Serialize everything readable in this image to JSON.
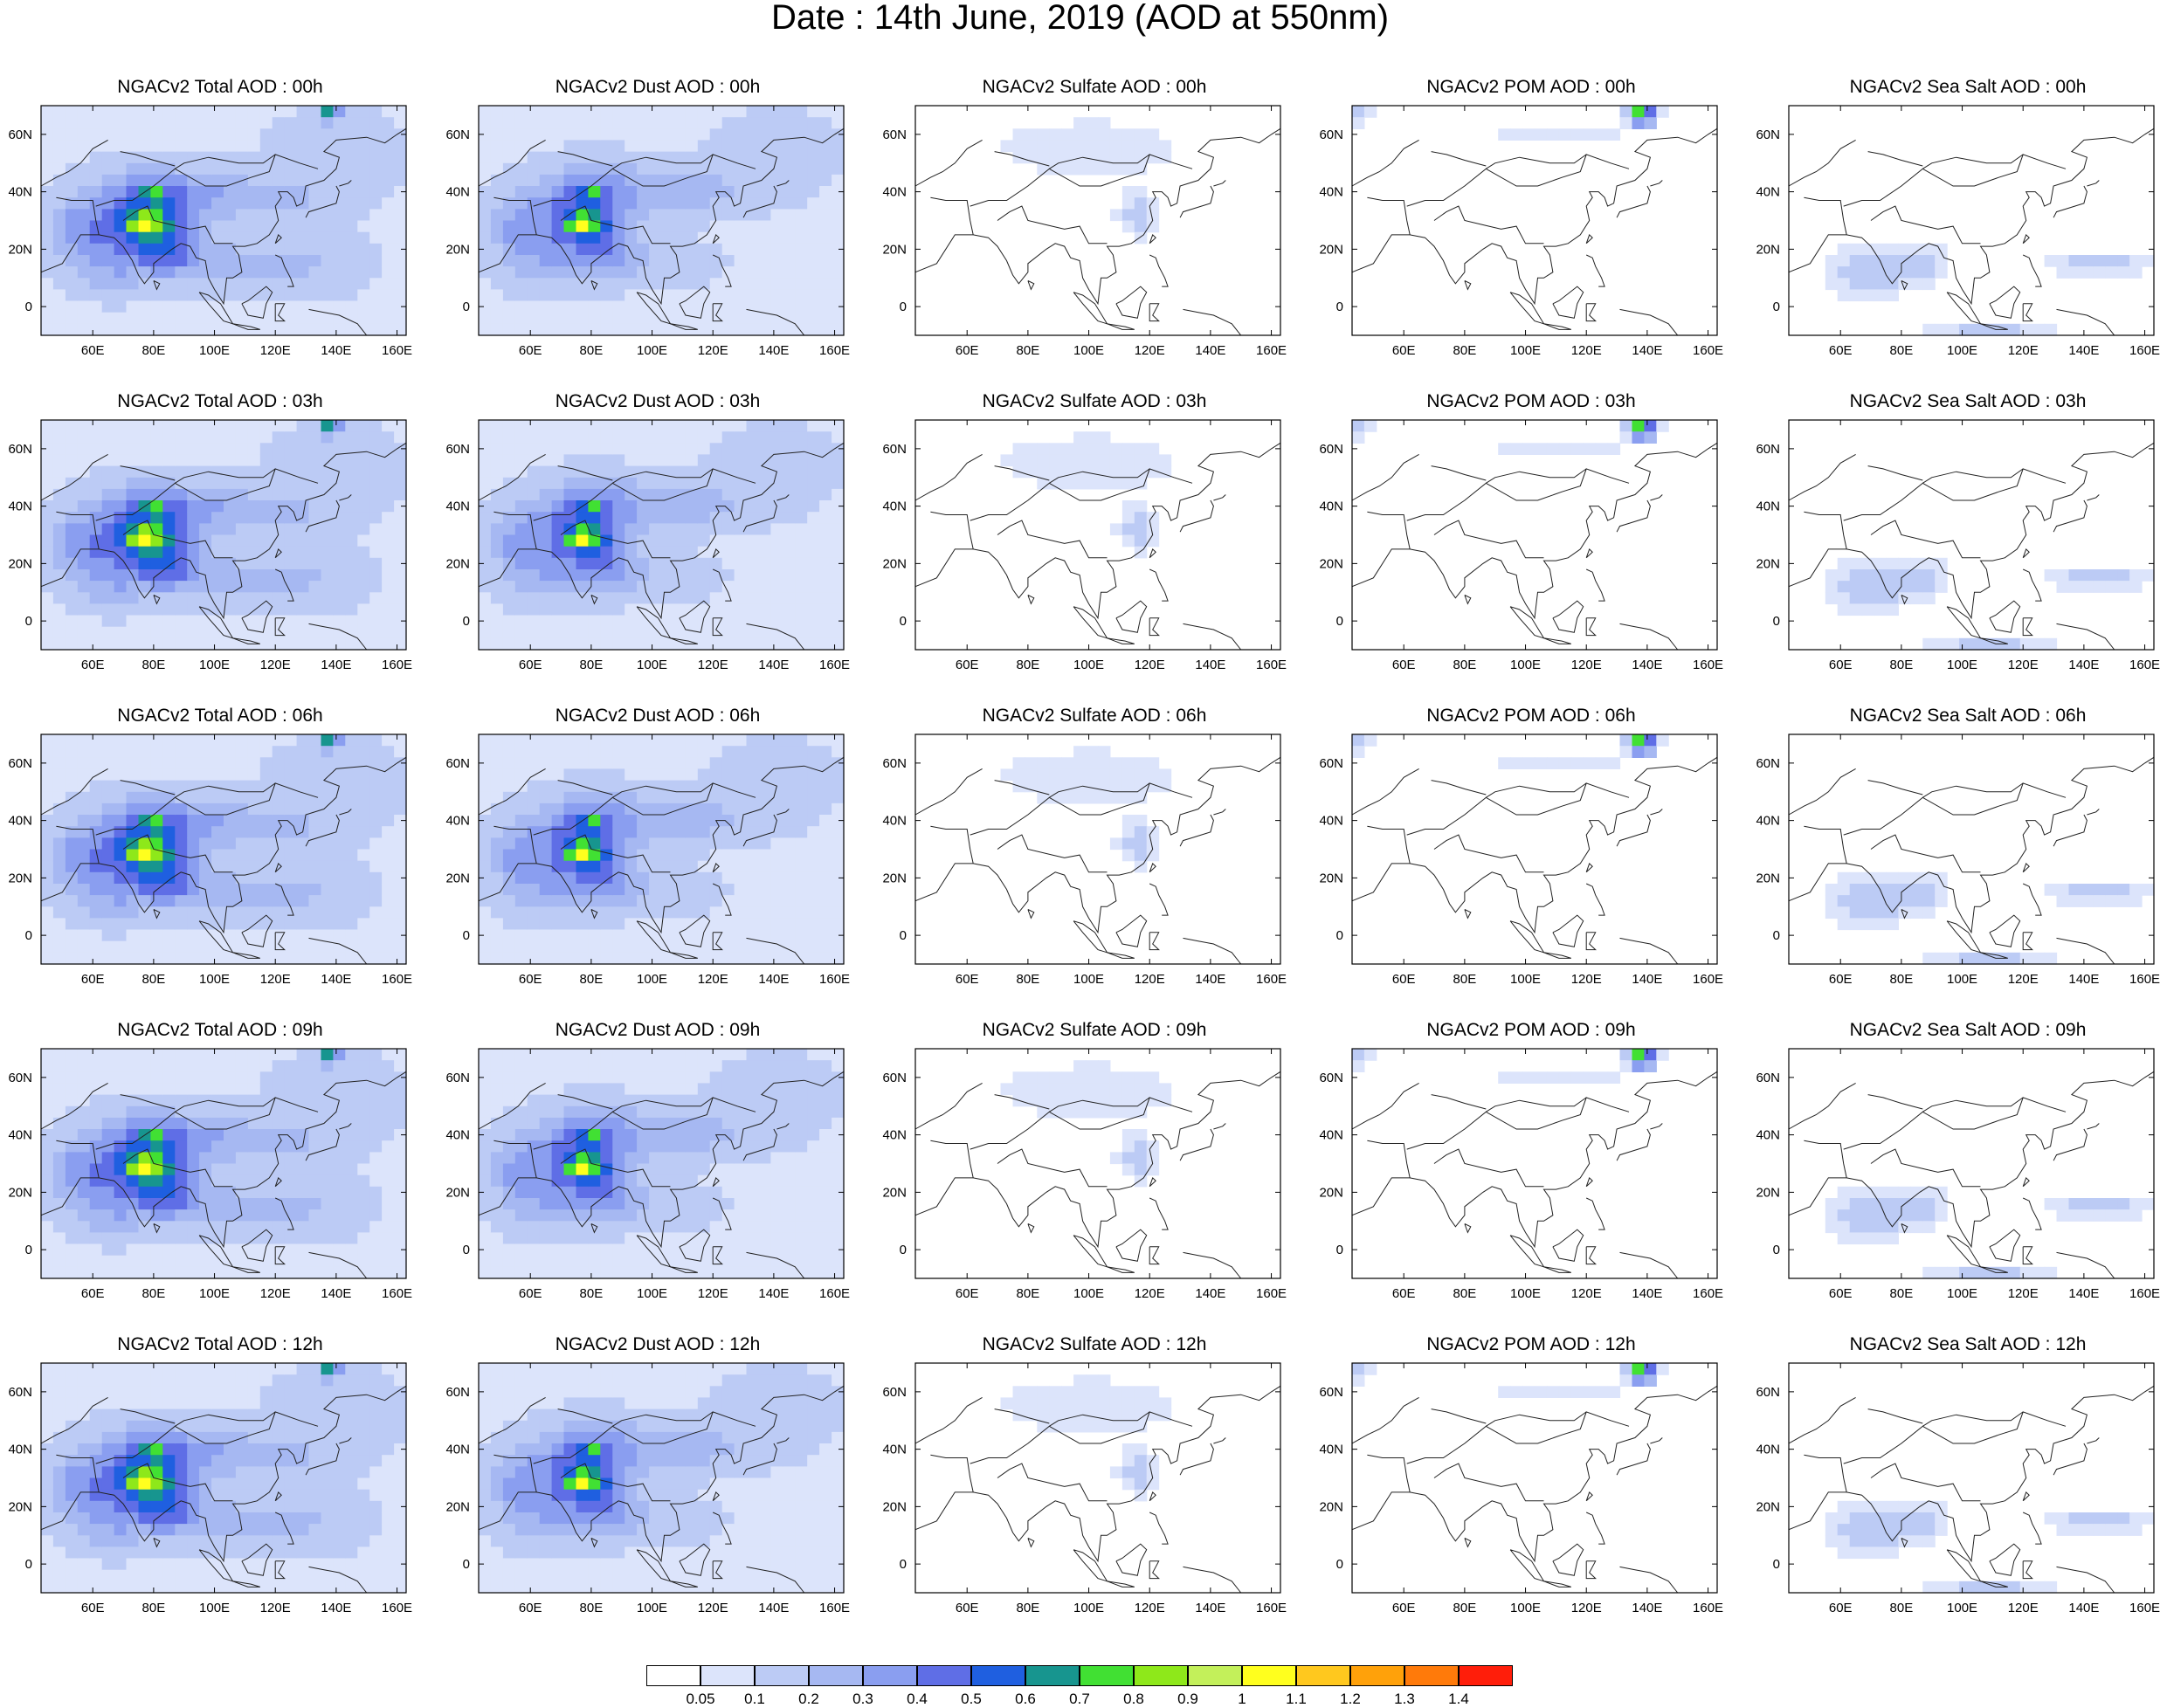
{
  "title": "Date : 14th June, 2019 (AOD at 550nm)",
  "axes": {
    "lon_ticks": [
      "60E",
      "80E",
      "100E",
      "120E",
      "140E",
      "160E"
    ],
    "lat_ticks": [
      "60N",
      "40N",
      "20N",
      "0"
    ],
    "lon_range": [
      43,
      163
    ],
    "lat_range": [
      -10,
      70
    ]
  },
  "panels": [
    {
      "title": "NGACv2 Total AOD : 00h",
      "field": "total"
    },
    {
      "title": "NGACv2 Dust AOD : 00h",
      "field": "dust"
    },
    {
      "title": "NGACv2 Sulfate AOD : 00h",
      "field": "sulfate"
    },
    {
      "title": "NGACv2 POM AOD : 00h",
      "field": "pom"
    },
    {
      "title": "NGACv2 Sea Salt AOD : 00h",
      "field": "seasalt"
    },
    {
      "title": "NGACv2 Total AOD : 03h",
      "field": "total"
    },
    {
      "title": "NGACv2 Dust AOD : 03h",
      "field": "dust"
    },
    {
      "title": "NGACv2 Sulfate AOD : 03h",
      "field": "sulfate"
    },
    {
      "title": "NGACv2 POM AOD : 03h",
      "field": "pom"
    },
    {
      "title": "NGACv2 Sea Salt AOD : 03h",
      "field": "seasalt"
    },
    {
      "title": "NGACv2 Total AOD : 06h",
      "field": "total"
    },
    {
      "title": "NGACv2 Dust AOD : 06h",
      "field": "dust"
    },
    {
      "title": "NGACv2 Sulfate AOD : 06h",
      "field": "sulfate"
    },
    {
      "title": "NGACv2 POM AOD : 06h",
      "field": "pom"
    },
    {
      "title": "NGACv2 Sea Salt AOD : 06h",
      "field": "seasalt"
    },
    {
      "title": "NGACv2 Total AOD : 09h",
      "field": "total"
    },
    {
      "title": "NGACv2 Dust AOD : 09h",
      "field": "dust"
    },
    {
      "title": "NGACv2 Sulfate AOD : 09h",
      "field": "sulfate"
    },
    {
      "title": "NGACv2 POM AOD : 09h",
      "field": "pom"
    },
    {
      "title": "NGACv2 Sea Salt  AOD : 09h",
      "field": "seasalt"
    },
    {
      "title": "NGACv2 Total AOD  : 12h",
      "field": "total"
    },
    {
      "title": "NGACv2 Dust AOD : 12h",
      "field": "dust"
    },
    {
      "title": "NGACv2 Sulfate AOD : 12h",
      "field": "sulfate"
    },
    {
      "title": "NGACv2 POM  AOD : 12h",
      "field": "pom"
    },
    {
      "title": "NGACv2 Sea Salt  AOD : 12h",
      "field": "seasalt"
    }
  ],
  "colorbar": {
    "labels": [
      "0.05",
      "0.1",
      "0.2",
      "0.3",
      "0.4",
      "0.5",
      "0.6",
      "0.7",
      "0.8",
      "0.9",
      "1",
      "1.1",
      "1.2",
      "1.3",
      "1.4"
    ],
    "colors": [
      "#ffffff",
      "#dce4fb",
      "#bccbf5",
      "#a6b8f2",
      "#8a9ef0",
      "#5f6ee6",
      "#1f5fe0",
      "#17958f",
      "#41e033",
      "#8ee81a",
      "#c3f05a",
      "#ffff1e",
      "#ffc81e",
      "#ffa10a",
      "#ff7a0a",
      "#ff1e0a"
    ]
  }
}
